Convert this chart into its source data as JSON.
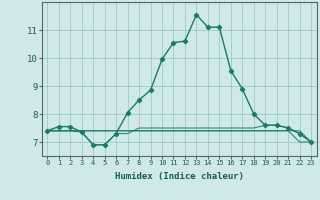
{
  "title": "",
  "xlabel": "Humidex (Indice chaleur)",
  "ylabel": "",
  "background_color": "#cfe8e8",
  "grid_color": "#a0c8c8",
  "line_color": "#1a7a6e",
  "xlim": [
    -0.5,
    23.5
  ],
  "ylim": [
    6.5,
    12.0
  ],
  "xticks": [
    0,
    1,
    2,
    3,
    4,
    5,
    6,
    7,
    8,
    9,
    10,
    11,
    12,
    13,
    14,
    15,
    16,
    17,
    18,
    19,
    20,
    21,
    22,
    23
  ],
  "yticks": [
    7,
    8,
    9,
    10,
    11
  ],
  "series": [
    [
      7.4,
      7.4,
      7.4,
      7.4,
      7.4,
      7.4,
      7.4,
      7.4,
      7.4,
      7.4,
      7.4,
      7.4,
      7.4,
      7.4,
      7.4,
      7.4,
      7.4,
      7.4,
      7.4,
      7.4,
      7.4,
      7.4,
      7.4,
      7.0
    ],
    [
      7.4,
      7.4,
      7.4,
      7.4,
      7.4,
      7.4,
      7.4,
      7.4,
      7.4,
      7.4,
      7.4,
      7.4,
      7.4,
      7.4,
      7.4,
      7.4,
      7.4,
      7.4,
      7.4,
      7.4,
      7.4,
      7.4,
      7.0,
      7.0
    ],
    [
      7.4,
      7.4,
      7.4,
      7.35,
      6.9,
      6.9,
      7.3,
      7.3,
      7.5,
      7.5,
      7.5,
      7.5,
      7.5,
      7.5,
      7.5,
      7.5,
      7.5,
      7.5,
      7.5,
      7.6,
      7.6,
      7.5,
      7.3,
      7.0
    ],
    [
      7.4,
      7.55,
      7.55,
      7.35,
      6.9,
      6.9,
      7.3,
      8.05,
      8.5,
      8.85,
      9.95,
      10.55,
      10.6,
      11.55,
      11.1,
      11.1,
      9.55,
      8.9,
      8.0,
      7.6,
      7.6,
      7.5,
      7.3,
      7.0
    ]
  ],
  "linewidths": [
    0.7,
    0.7,
    0.7,
    1.0
  ],
  "markers": [
    false,
    false,
    false,
    true
  ],
  "xlabel_fontsize": 6.5,
  "tick_fontsize_x": 5.0,
  "tick_fontsize_y": 6.5
}
